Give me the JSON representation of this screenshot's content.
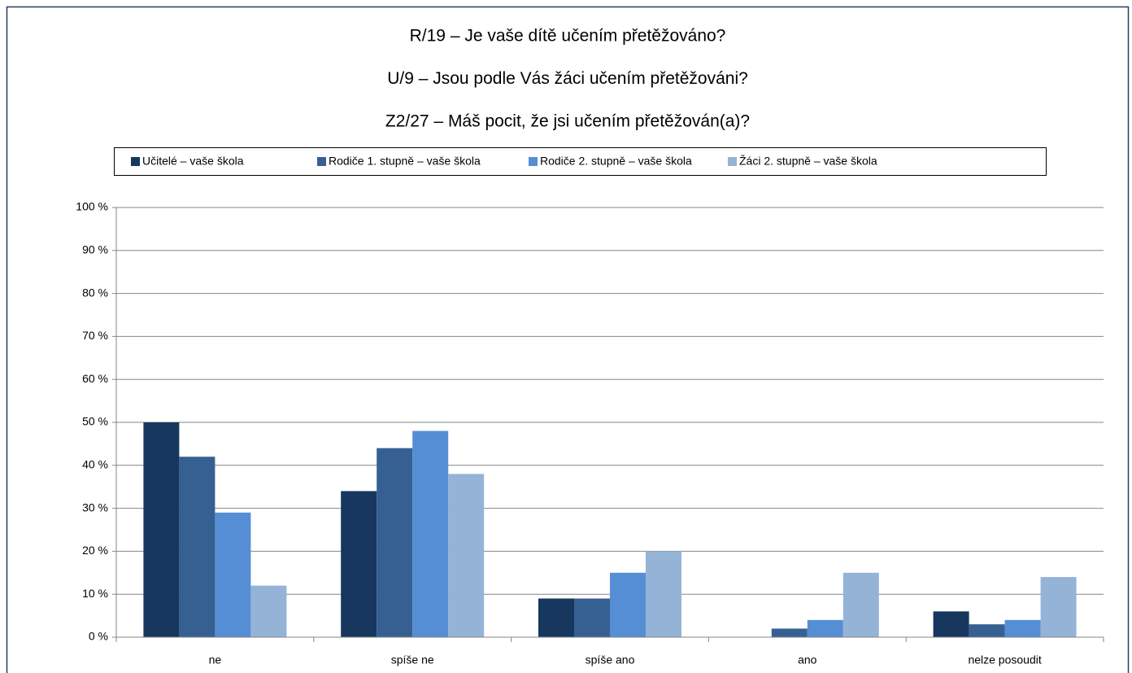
{
  "chart_data": {
    "type": "bar",
    "title": [
      "R/19 – Je vaše dítě učením přetěžováno?",
      "U/9 – Jsou podle Vás žáci učením přetěžováni?",
      "Z2/27 – Máš pocit, že jsi učením přetěžován(a)?"
    ],
    "categories": [
      "ne",
      "spíše ne",
      "spíše ano",
      "ano",
      "nelze posoudit"
    ],
    "series": [
      {
        "name": "Učitelé – vaše škola",
        "color": "#17375e",
        "values": [
          50,
          34,
          9,
          0,
          6
        ]
      },
      {
        "name": "Rodiče 1. stupně – vaše škola",
        "color": "#366092",
        "values": [
          42,
          44,
          9,
          2,
          3
        ]
      },
      {
        "name": "Rodiče 2. stupně – vaše škola",
        "color": "#558ed5",
        "values": [
          29,
          48,
          15,
          4,
          4
        ]
      },
      {
        "name": "Žáci 2. stupně – vaše škola",
        "color": "#95b3d7",
        "values": [
          12,
          38,
          20,
          15,
          14
        ]
      }
    ],
    "ylim": [
      0,
      100
    ],
    "yticks": [
      {
        "value": 0,
        "label": "0 %"
      },
      {
        "value": 10,
        "label": "10 %"
      },
      {
        "value": 20,
        "label": "20 %"
      },
      {
        "value": 30,
        "label": "30 %"
      },
      {
        "value": 40,
        "label": "40 %"
      },
      {
        "value": 50,
        "label": "50 %"
      },
      {
        "value": 60,
        "label": "60 %"
      },
      {
        "value": 70,
        "label": "70 %"
      },
      {
        "value": 80,
        "label": "80 %"
      },
      {
        "value": 90,
        "label": "90 %"
      },
      {
        "value": 100,
        "label": "100 %"
      }
    ],
    "grid": true,
    "legend": "top"
  }
}
